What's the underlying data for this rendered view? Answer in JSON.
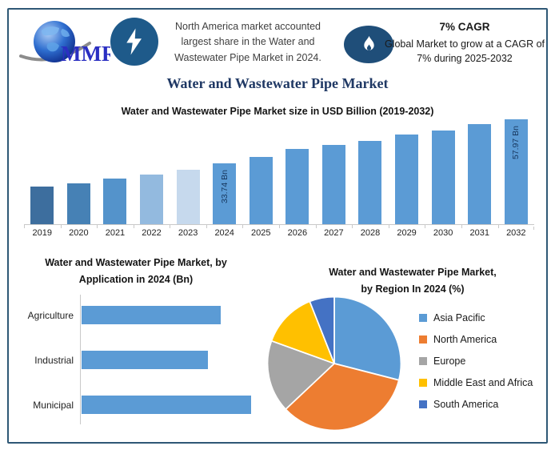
{
  "header": {
    "logo_text": "MMR",
    "highlight_text": "North America market accounted largest share in the Water and Wastewater Pipe Market in 2024.",
    "cagr": {
      "title": "7% CAGR",
      "text": "Global Market to grow at a CAGR of 7% during 2025-2032"
    }
  },
  "main_title": "Water and Wastewater Pipe Market",
  "colors": {
    "accent_blue": "#5B9BD5",
    "frame_border": "#2F5876",
    "title_navy": "#1F3864",
    "lightning_circle_blue": "#1E5A8A",
    "flame_ellipse_navy": "#1F4E79",
    "axis_gray": "#C9C9C9"
  },
  "chart_data": [
    {
      "type": "bar",
      "title": "Water and Wastewater Pipe Market size in USD Billion (2019-2032)",
      "unit": "USD Billion",
      "categories": [
        "2019",
        "2020",
        "2021",
        "2022",
        "2023",
        "2024",
        "2025",
        "2026",
        "2027",
        "2028",
        "2029",
        "2030",
        "2031",
        "2032"
      ],
      "values": [
        21.1,
        22.9,
        25.2,
        27.8,
        30.4,
        33.74,
        37.5,
        41.9,
        44.2,
        46.4,
        49.8,
        52.0,
        55.4,
        57.97
      ],
      "data_labels": [
        "",
        "",
        "",
        "",
        "",
        "33.74 Bn",
        "",
        "",
        "",
        "",
        "",
        "",
        "",
        "57.97 Bn"
      ],
      "bar_colors": [
        "#3D6E9E",
        "#4681B5",
        "#5493CB",
        "#93BADF",
        "#C6D9ED",
        "#5B9BD5",
        "#5B9BD5",
        "#5B9BD5",
        "#5B9BD5",
        "#5B9BD5",
        "#5B9BD5",
        "#5B9BD5",
        "#5B9BD5",
        "#5B9BD5"
      ],
      "ylim": [
        0,
        62
      ],
      "grid": false,
      "legend": false
    },
    {
      "type": "bar",
      "orientation": "horizontal",
      "title": "Water and Wastewater Pipe Market, by Application in 2024 (Bn)",
      "title_lines": [
        "Water and Wastewater Pipe Market, by",
        "Application in 2024 (Bn)"
      ],
      "categories": [
        "Agriculture",
        "Industrial",
        "Municipal"
      ],
      "values": [
        10.8,
        9.8,
        13.2
      ],
      "bar_color": "#5B9BD5",
      "xlim": [
        0,
        14
      ],
      "grid": false,
      "legend": false
    },
    {
      "type": "pie",
      "title": "Water and Wastewater Pipe Market, by Region In 2024 (%)",
      "title_lines": [
        "Water and Wastewater Pipe Market,",
        "by Region In 2024 (%)"
      ],
      "segments": [
        {
          "label": "Asia Pacific",
          "value": 29,
          "color": "#5B9BD5"
        },
        {
          "label": "North America",
          "value": 34,
          "color": "#ED7D31"
        },
        {
          "label": "Europe",
          "value": 17.5,
          "color": "#A5A5A5"
        },
        {
          "label": "Middle East and Africa",
          "value": 13.5,
          "color": "#FFC000"
        },
        {
          "label": "South America",
          "value": 6,
          "color": "#4472C4"
        }
      ],
      "start_angle_deg": 0,
      "direction": "clockwise",
      "slice_border_color": "#FFFFFF",
      "legend_position": "right"
    }
  ]
}
